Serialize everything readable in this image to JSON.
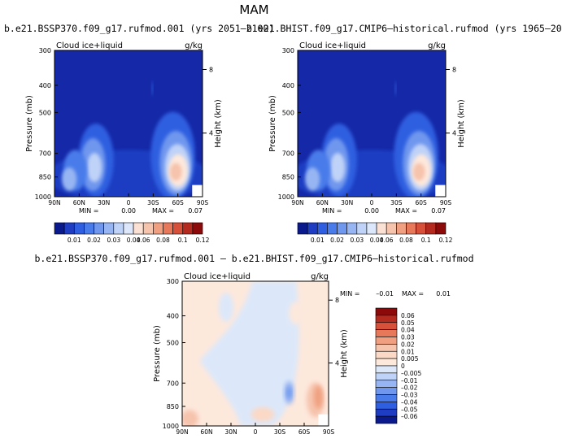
{
  "page": {
    "season_title": "MAM",
    "bottom_title": "b.e21.BSSP370.f09_g17.rufmod.001  –  b.e21.BHIST.f09_g17.CMIP6–historical.rufmod"
  },
  "chart_data": [
    {
      "type": "heatmap",
      "title": "b.e21.BSSP370.f09_g17.rufmod.001 (yrs 2051–2100)",
      "field_label": "Cloud ice+liquid",
      "units": "g/kg",
      "xlabel": "",
      "ylabel": "Pressure (mb)",
      "y2label": "Height (km)",
      "x_ticks": [
        "90N",
        "60N",
        "30N",
        "0",
        "30S",
        "60S",
        "90S"
      ],
      "y_ticks": [
        "300",
        "400",
        "500",
        "700",
        "850",
        "1000"
      ],
      "y2_ticks": [
        "8",
        "4"
      ],
      "stats": {
        "min_label": "MIN =",
        "min": "0.00",
        "max_label": "MAX =",
        "max": "0.07"
      },
      "colorbar": {
        "orientation": "horizontal",
        "levels": [
          "0.01",
          "0.02",
          "0.03",
          "0.04",
          "0.06",
          "0.08",
          "0.1",
          "0.12"
        ],
        "colors": [
          "#0a1a8c",
          "#1f3dc2",
          "#2f5ee0",
          "#4a7bea",
          "#6f97ee",
          "#97b5f2",
          "#bfd2f7",
          "#dde7fb",
          "#fbe0d4",
          "#f6c3ac",
          "#f0a080",
          "#e8785a",
          "#d6503a",
          "#b52a1f",
          "#8c0a0a"
        ]
      },
      "features": [
        {
          "lat": -55,
          "p": 870,
          "value": 0.07
        },
        {
          "lat": 55,
          "p": 860,
          "value": 0.04
        }
      ]
    },
    {
      "type": "heatmap",
      "title": "b.e21.BHIST.f09_g17.CMIP6–historical.rufmod (yrs 1965–20",
      "field_label": "Cloud ice+liquid",
      "units": "g/kg",
      "xlabel": "",
      "ylabel": "Pressure (mb)",
      "y2label": "Height (km)",
      "x_ticks": [
        "90N",
        "60N",
        "30N",
        "0",
        "30S",
        "60S",
        "90S"
      ],
      "y_ticks": [
        "300",
        "400",
        "500",
        "700",
        "850",
        "1000"
      ],
      "y2_ticks": [
        "8",
        "4"
      ],
      "stats": {
        "min_label": "MIN =",
        "min": "0.00",
        "max_label": "MAX =",
        "max": "0.07"
      },
      "colorbar": {
        "orientation": "horizontal",
        "levels": [
          "0.01",
          "0.02",
          "0.03",
          "0.04",
          "0.06",
          "0.08",
          "0.1",
          "0.12"
        ],
        "colors": [
          "#0a1a8c",
          "#1f3dc2",
          "#2f5ee0",
          "#4a7bea",
          "#6f97ee",
          "#97b5f2",
          "#bfd2f7",
          "#dde7fb",
          "#fbe0d4",
          "#f6c3ac",
          "#f0a080",
          "#e8785a",
          "#d6503a",
          "#b52a1f",
          "#8c0a0a"
        ]
      },
      "features": [
        {
          "lat": -55,
          "p": 870,
          "value": 0.07
        },
        {
          "lat": 55,
          "p": 860,
          "value": 0.04
        }
      ]
    },
    {
      "type": "heatmap",
      "title": "",
      "field_label": "Cloud ice+liquid",
      "units": "g/kg",
      "xlabel": "",
      "ylabel": "Pressure (mb)",
      "y2label": "Height (km)",
      "x_ticks": [
        "90N",
        "60N",
        "30N",
        "0",
        "30S",
        "60S",
        "90S"
      ],
      "y_ticks": [
        "300",
        "400",
        "500",
        "700",
        "850",
        "1000"
      ],
      "y2_ticks": [
        "8",
        "4"
      ],
      "stats": {
        "min_label": "MIN =",
        "min": "–0.01",
        "max_label": "MAX =",
        "max": "0.01"
      },
      "colorbar": {
        "orientation": "vertical",
        "levels": [
          "0.06",
          "0.05",
          "0.04",
          "0.03",
          "0.02",
          "0.01",
          "0.005",
          "0",
          "–0.005",
          "–0.01",
          "–0.02",
          "–0.03",
          "–0.04",
          "–0.05",
          "–0.06"
        ],
        "colors": [
          "#8c0a0a",
          "#b52a1f",
          "#d6503a",
          "#e8785a",
          "#f0a080",
          "#f6c3ac",
          "#fbd9c6",
          "#fde8dc",
          "#dce8fa",
          "#bfd2f7",
          "#97b5f2",
          "#6f97ee",
          "#4a7bea",
          "#2f5ee0",
          "#1f3dc2",
          "#0a1a8c"
        ]
      },
      "features": [
        {
          "lat": -40,
          "p": 850,
          "value": -0.01
        },
        {
          "lat": -75,
          "p": 880,
          "value": 0.01
        },
        {
          "lat": 80,
          "p": 980,
          "value": 0.005
        }
      ]
    }
  ]
}
